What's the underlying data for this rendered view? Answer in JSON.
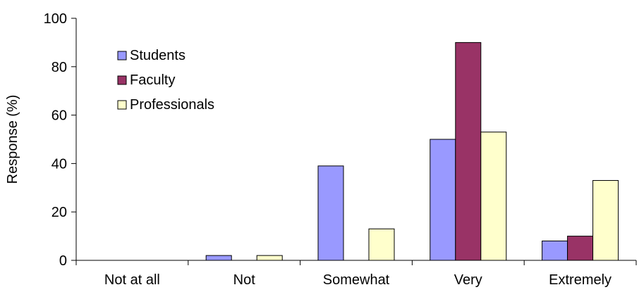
{
  "chart_data": {
    "type": "bar",
    "title": "",
    "xlabel": "",
    "ylabel": "Response (%)",
    "ylim": [
      0,
      100
    ],
    "yticks": [
      0,
      20,
      40,
      60,
      80,
      100
    ],
    "grid": false,
    "legend_position": "top-left",
    "categories": [
      "Not at all",
      "Not",
      "Somewhat",
      "Very",
      "Extremely"
    ],
    "series": [
      {
        "name": "Students",
        "color": "#9999ff",
        "values": [
          0,
          2,
          39,
          50,
          8
        ]
      },
      {
        "name": "Faculty",
        "color": "#993366",
        "values": [
          0,
          0,
          0,
          90,
          10
        ]
      },
      {
        "name": "Professionals",
        "color": "#ffffcc",
        "values": [
          0,
          2,
          13,
          53,
          33
        ]
      }
    ]
  }
}
